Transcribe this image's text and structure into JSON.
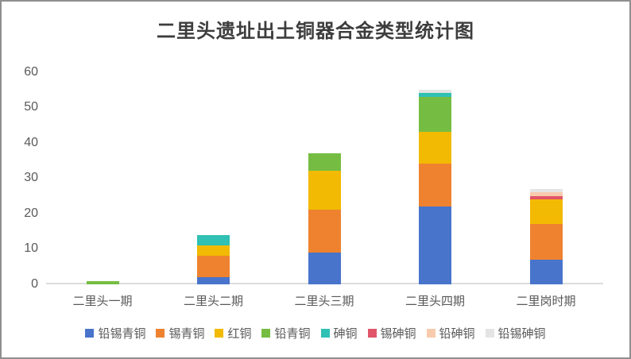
{
  "title": "二里头遗址出土铜器合金类型统计图",
  "chart_data": {
    "type": "bar",
    "stacked": true,
    "title": "二里头遗址出土铜器合金类型统计图",
    "xlabel": "",
    "ylabel": "",
    "ylim": [
      0,
      60
    ],
    "y_ticks": [
      0,
      10,
      20,
      30,
      40,
      50,
      60
    ],
    "grid": false,
    "legend_position": "bottom",
    "categories": [
      "二里头一期",
      "二里头二期",
      "二里头三期",
      "二里头四期",
      "二里岗时期"
    ],
    "series": [
      {
        "name": "铅锡青铜",
        "color": "#4874CB",
        "values": [
          0,
          2,
          9,
          22,
          7
        ]
      },
      {
        "name": "锡青铜",
        "color": "#EE822F",
        "values": [
          0,
          6,
          12,
          12,
          10
        ]
      },
      {
        "name": "红铜",
        "color": "#F2BA02",
        "values": [
          0,
          3,
          11,
          9,
          7
        ]
      },
      {
        "name": "铅青铜",
        "color": "#75BD42",
        "values": [
          1,
          0,
          5,
          10,
          0
        ]
      },
      {
        "name": "砷铜",
        "color": "#30C0B4",
        "values": [
          0,
          3,
          0,
          1,
          0
        ]
      },
      {
        "name": "锡砷铜",
        "color": "#E0556A",
        "values": [
          0,
          0,
          0,
          0,
          1
        ]
      },
      {
        "name": "铅砷铜",
        "color": "#F7CBAC",
        "values": [
          0,
          0,
          0,
          0,
          1
        ]
      },
      {
        "name": "铅锡砷铜",
        "color": "#E4E4E4",
        "values": [
          0,
          0,
          0,
          1,
          1
        ]
      }
    ],
    "stack_totals": [
      1,
      14,
      37,
      55,
      27
    ]
  }
}
